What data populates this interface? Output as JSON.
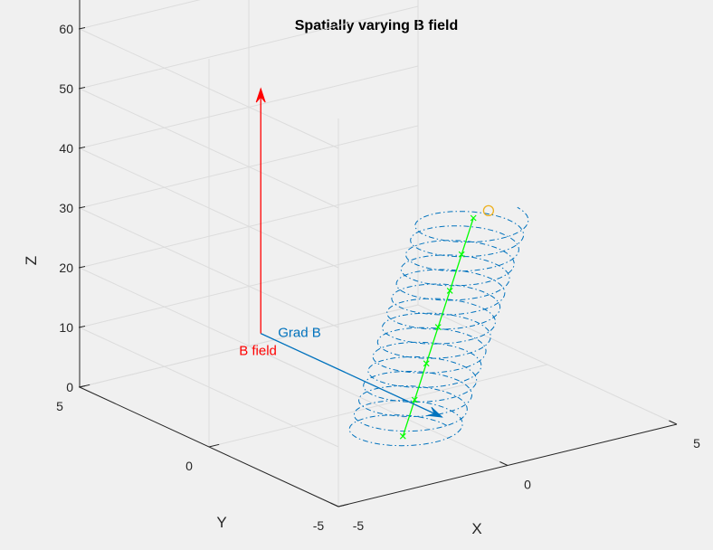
{
  "chart_data": {
    "type": "line3d",
    "title": "Spatially varying B field",
    "xlabel": "X",
    "ylabel": "Y",
    "zlabel": "Z",
    "xlim": [
      -5,
      5
    ],
    "ylim": [
      -5,
      5
    ],
    "zlim": [
      0,
      65
    ],
    "xticks": [
      "-5",
      "0",
      "5"
    ],
    "yticks": [
      "-5",
      "0",
      "5"
    ],
    "zticks": [
      "0",
      "10",
      "20",
      "30",
      "40",
      "50",
      "60"
    ],
    "grid": true,
    "view": "3-D",
    "colors": {
      "background": "#f0f0f0",
      "grid": "#dcdcdc",
      "axis": "#262626",
      "trajectory": "#0072bd",
      "guiding_center": "#00ff00",
      "b_field": "#ff0000",
      "grad_b": "#0072bd",
      "start_marker": "#edb120"
    },
    "annotations": [
      {
        "text": "B field",
        "color": "#ff0000",
        "from": [
          -5,
          -2,
          23
        ],
        "to": [
          -5,
          -2,
          64
        ]
      },
      {
        "text": "Grad B",
        "color": "#0072bd",
        "from": [
          -5,
          -2,
          23
        ],
        "to": [
          -5,
          -9,
          23
        ]
      }
    ],
    "series": [
      {
        "kind": "guiding-center",
        "marker": "x",
        "x": [
          -0.8,
          -0.3,
          0.2,
          0.7,
          1.2,
          1.7,
          2.2
        ],
        "y": [
          -2.0,
          -1.8,
          -1.6,
          -1.4,
          -1.2,
          -1.0,
          -0.8
        ],
        "z": [
          0,
          5,
          10,
          15,
          20,
          25,
          30
        ]
      },
      {
        "kind": "gyro-orbit",
        "style": "dash-dot",
        "start": [
          2.8,
          -0.6,
          30
        ],
        "radius": 1.3,
        "turns": 15,
        "z_range": [
          0,
          30
        ]
      }
    ]
  }
}
